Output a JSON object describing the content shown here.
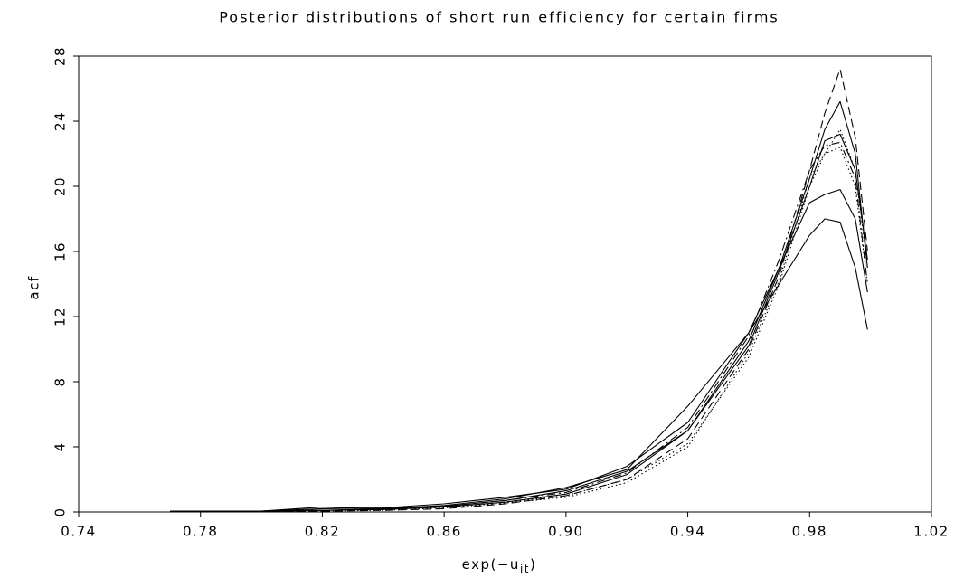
{
  "chart_data": {
    "type": "line",
    "title": "Posterior distributions of short run efficiency for certain firms",
    "xlabel": {
      "base": "exp(−u",
      "subscript": "it",
      "close": ")"
    },
    "ylabel": "acf",
    "xlim": [
      0.74,
      1.02
    ],
    "xticks": [
      0.74,
      0.78,
      0.82,
      0.86,
      {
        "value": 0.9,
        "label": "0.90"
      },
      0.94,
      0.98,
      1.02
    ],
    "ylim": [
      0,
      28
    ],
    "yticks": [
      0,
      4,
      8,
      12,
      16,
      20,
      24,
      28
    ],
    "grid": false,
    "x": [
      0.77,
      0.8,
      0.82,
      0.84,
      0.86,
      0.88,
      0.9,
      0.92,
      0.94,
      0.96,
      0.97,
      0.98,
      0.985,
      0.99,
      0.995,
      0.999
    ],
    "series": [
      {
        "color": "#000000",
        "line_style": "solid",
        "values": [
          0.05,
          0.05,
          0.1,
          0.15,
          0.3,
          0.6,
          1.1,
          2.3,
          5,
          10.5,
          15,
          20.5,
          23.5,
          25.2,
          22,
          15
        ]
      },
      {
        "color": "#000000",
        "line_style": "solid",
        "values": [
          0.05,
          0.05,
          0.1,
          0.2,
          0.4,
          0.8,
          1.5,
          2.6,
          6.5,
          11,
          14,
          17,
          18,
          17.8,
          15,
          11.2
        ]
      },
      {
        "color": "#000000",
        "line_style": "dashed",
        "values": [
          0.02,
          0.03,
          0.05,
          0.1,
          0.2,
          0.5,
          1,
          2,
          4.5,
          10,
          14.5,
          21,
          24.5,
          27.2,
          23,
          16
        ]
      },
      {
        "color": "#000000",
        "line_style": "dotted",
        "values": [
          0.03,
          0.04,
          0.08,
          0.12,
          0.3,
          0.6,
          1,
          2,
          4.2,
          9.5,
          14,
          20,
          22,
          23.5,
          21,
          15
        ]
      },
      {
        "color": "#000000",
        "line_style": "solid",
        "values": [
          0.05,
          0.05,
          0.2,
          0.25,
          0.5,
          0.9,
          1.4,
          2.8,
          5.5,
          11,
          15,
          19,
          19.5,
          19.8,
          18,
          13.5
        ]
      },
      {
        "color": "#000000",
        "line_style": "dashdot",
        "values": [
          0.02,
          0.04,
          0.1,
          0.15,
          0.35,
          0.7,
          1.2,
          2.4,
          5.2,
          10.8,
          15.5,
          21,
          22.5,
          22.7,
          20.5,
          14
        ]
      },
      {
        "color": "#000000",
        "line_style": "solid",
        "values": [
          0.05,
          0.05,
          0.3,
          0.2,
          0.35,
          0.7,
          1.3,
          2.5,
          5,
          10.2,
          14.8,
          20,
          22.8,
          23.2,
          21,
          15.5
        ]
      },
      {
        "color": "#000000",
        "line_style": "dotted",
        "values": [
          0.03,
          0.03,
          0.06,
          0.1,
          0.25,
          0.55,
          0.9,
          1.8,
          4,
          9.8,
          14.2,
          20.5,
          22,
          22.4,
          20,
          14
        ]
      }
    ]
  }
}
